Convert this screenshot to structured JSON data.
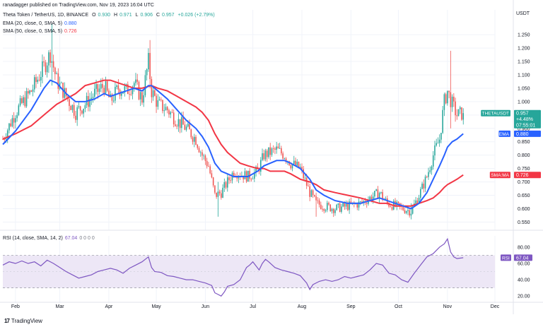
{
  "header": {
    "published": "ranadagger published on TradingView.com, Nov 19, 2023 16:04 UTC",
    "symbol": "Theta Token / TetherUS, 1D, BINANCE",
    "ohlc": {
      "o_label": "O",
      "o": "0.930",
      "h_label": "H",
      "h": "0.971",
      "l_label": "L",
      "l": "0.906",
      "c_label": "C",
      "c": "0.957",
      "change": "+0.026 (+2.79%)"
    },
    "ema_label": "EMA (20, close, 0, SMA, 5)",
    "ema_value": "0.880",
    "sma_label": "SMA (50, close, 0, SMA, 5)",
    "sma_value": "0.726",
    "currency": "USDT"
  },
  "rsi_header": {
    "label": "RSI (14, close, SMA, 14, 2)",
    "value": "67.04",
    "extra": "0 0 0 0"
  },
  "footer": {
    "brand": "TradingView"
  },
  "colors": {
    "up": "#26a69a",
    "down": "#ef5350",
    "ema": "#2962ff",
    "sma": "#f23645",
    "rsi": "#7e57c2",
    "rsi_band": "#ede7f6",
    "price_tag": "#26a69a",
    "grid": "#f0f3fa",
    "axis_text": "#131722"
  },
  "chart_data": [
    {
      "type": "candlestick",
      "title": "Theta Token / TetherUS, 1D, BINANCE",
      "currency": "USDT",
      "x_labels": [
        "Feb",
        "Mar",
        "Apr",
        "May",
        "Jun",
        "Jul",
        "Aug",
        "Sep",
        "Oct",
        "Nov",
        "Dec"
      ],
      "x_label_day_index": [
        0,
        28,
        59,
        89,
        120,
        150,
        181,
        212,
        242,
        273,
        303
      ],
      "y_ticks": [
        1.25,
        1.2,
        1.15,
        1.1,
        1.05,
        1.0,
        0.95,
        0.9,
        0.85,
        0.8,
        0.75,
        0.7,
        0.65,
        0.6,
        0.55
      ],
      "ylim": [
        0.53,
        1.29
      ],
      "close_points": [
        [
          -8,
          0.86
        ],
        [
          0,
          0.96
        ],
        [
          10,
          1.04
        ],
        [
          18,
          1.13
        ],
        [
          22,
          1.18
        ],
        [
          26,
          1.08
        ],
        [
          32,
          1.02
        ],
        [
          38,
          0.96
        ],
        [
          44,
          0.99
        ],
        [
          50,
          1.03
        ],
        [
          56,
          1.06
        ],
        [
          60,
          1.0
        ],
        [
          65,
          1.05
        ],
        [
          70,
          1.04
        ],
        [
          75,
          1.07
        ],
        [
          80,
          1.01
        ],
        [
          84,
          1.15
        ],
        [
          86,
          1.04
        ],
        [
          90,
          0.99
        ],
        [
          96,
          0.97
        ],
        [
          102,
          0.93
        ],
        [
          108,
          0.9
        ],
        [
          114,
          0.86
        ],
        [
          118,
          0.8
        ],
        [
          122,
          0.76
        ],
        [
          126,
          0.65
        ],
        [
          130,
          0.66
        ],
        [
          134,
          0.7
        ],
        [
          138,
          0.74
        ],
        [
          142,
          0.73
        ],
        [
          147,
          0.72
        ],
        [
          153,
          0.74
        ],
        [
          157,
          0.8
        ],
        [
          161,
          0.81
        ],
        [
          165,
          0.82
        ],
        [
          170,
          0.8
        ],
        [
          174,
          0.77
        ],
        [
          180,
          0.75
        ],
        [
          186,
          0.66
        ],
        [
          190,
          0.62
        ],
        [
          195,
          0.61
        ],
        [
          202,
          0.6
        ],
        [
          210,
          0.61
        ],
        [
          218,
          0.62
        ],
        [
          224,
          0.64
        ],
        [
          230,
          0.66
        ],
        [
          235,
          0.62
        ],
        [
          240,
          0.61
        ],
        [
          245,
          0.6
        ],
        [
          250,
          0.59
        ],
        [
          255,
          0.65
        ],
        [
          260,
          0.72
        ],
        [
          264,
          0.8
        ],
        [
          268,
          0.86
        ],
        [
          271,
          1.0
        ],
        [
          273,
          1.04
        ],
        [
          276,
          0.99
        ],
        [
          279,
          0.95
        ],
        [
          283,
          0.957
        ]
      ],
      "candle_count_start": -8,
      "candle_count_end": 283,
      "wick_range": 0.025,
      "notable_extremes": [
        [
          23,
          1.29,
          1.06
        ],
        [
          85,
          1.23,
          1.05
        ],
        [
          275,
          1.19,
          0.9
        ],
        [
          128,
          0.7,
          0.57
        ],
        [
          190,
          0.66,
          0.57
        ],
        [
          250,
          0.62,
          0.56
        ]
      ],
      "overlays": [
        {
          "name": "EMA (20, close, 0, SMA, 5)",
          "last": 0.88,
          "points": [
            [
              -8,
              0.84
            ],
            [
              0,
              0.89
            ],
            [
              10,
              0.97
            ],
            [
              18,
              1.05
            ],
            [
              22,
              1.08
            ],
            [
              26,
              1.07
            ],
            [
              32,
              1.03
            ],
            [
              38,
              1.0
            ],
            [
              44,
              1.0
            ],
            [
              50,
              1.01
            ],
            [
              56,
              1.03
            ],
            [
              60,
              1.02
            ],
            [
              65,
              1.03
            ],
            [
              70,
              1.04
            ],
            [
              75,
              1.05
            ],
            [
              80,
              1.04
            ],
            [
              84,
              1.06
            ],
            [
              86,
              1.06
            ],
            [
              90,
              1.04
            ],
            [
              96,
              1.01
            ],
            [
              102,
              0.97
            ],
            [
              108,
              0.93
            ],
            [
              114,
              0.9
            ],
            [
              118,
              0.87
            ],
            [
              122,
              0.83
            ],
            [
              126,
              0.77
            ],
            [
              130,
              0.74
            ],
            [
              134,
              0.73
            ],
            [
              138,
              0.72
            ],
            [
              142,
              0.72
            ],
            [
              147,
              0.72
            ],
            [
              153,
              0.74
            ],
            [
              157,
              0.76
            ],
            [
              161,
              0.77
            ],
            [
              165,
              0.78
            ],
            [
              170,
              0.78
            ],
            [
              174,
              0.77
            ],
            [
              180,
              0.75
            ],
            [
              186,
              0.71
            ],
            [
              190,
              0.67
            ],
            [
              195,
              0.65
            ],
            [
              202,
              0.63
            ],
            [
              210,
              0.62
            ],
            [
              218,
              0.62
            ],
            [
              224,
              0.63
            ],
            [
              230,
              0.64
            ],
            [
              235,
              0.63
            ],
            [
              240,
              0.62
            ],
            [
              245,
              0.61
            ],
            [
              250,
              0.6
            ],
            [
              255,
              0.62
            ],
            [
              260,
              0.66
            ],
            [
              264,
              0.71
            ],
            [
              268,
              0.76
            ],
            [
              271,
              0.8
            ],
            [
              273,
              0.83
            ],
            [
              276,
              0.85
            ],
            [
              279,
              0.86
            ],
            [
              283,
              0.88
            ]
          ]
        },
        {
          "name": "SMA (50, close, 0, SMA, 5)",
          "last": 0.726,
          "points": [
            [
              -8,
              0.86
            ],
            [
              0,
              0.88
            ],
            [
              10,
              0.91
            ],
            [
              18,
              0.95
            ],
            [
              26,
              0.99
            ],
            [
              32,
              1.01
            ],
            [
              38,
              1.03
            ],
            [
              44,
              1.06
            ],
            [
              50,
              1.07
            ],
            [
              56,
              1.08
            ],
            [
              60,
              1.08
            ],
            [
              65,
              1.07
            ],
            [
              70,
              1.06
            ],
            [
              75,
              1.05
            ],
            [
              80,
              1.05
            ],
            [
              86,
              1.06
            ],
            [
              90,
              1.05
            ],
            [
              96,
              1.04
            ],
            [
              102,
              1.02
            ],
            [
              108,
              1.0
            ],
            [
              114,
              0.98
            ],
            [
              118,
              0.96
            ],
            [
              122,
              0.93
            ],
            [
              126,
              0.88
            ],
            [
              130,
              0.84
            ],
            [
              134,
              0.81
            ],
            [
              138,
              0.79
            ],
            [
              142,
              0.77
            ],
            [
              147,
              0.76
            ],
            [
              153,
              0.75
            ],
            [
              157,
              0.75
            ],
            [
              161,
              0.74
            ],
            [
              165,
              0.74
            ],
            [
              170,
              0.74
            ],
            [
              174,
              0.73
            ],
            [
              180,
              0.71
            ],
            [
              186,
              0.7
            ],
            [
              190,
              0.69
            ],
            [
              195,
              0.67
            ],
            [
              202,
              0.66
            ],
            [
              210,
              0.65
            ],
            [
              218,
              0.64
            ],
            [
              224,
              0.63
            ],
            [
              230,
              0.62
            ],
            [
              235,
              0.62
            ],
            [
              240,
              0.61
            ],
            [
              245,
              0.61
            ],
            [
              250,
              0.61
            ],
            [
              255,
              0.62
            ],
            [
              260,
              0.63
            ],
            [
              264,
              0.64
            ],
            [
              268,
              0.66
            ],
            [
              271,
              0.68
            ],
            [
              273,
              0.69
            ],
            [
              276,
              0.7
            ],
            [
              279,
              0.71
            ],
            [
              283,
              0.726
            ]
          ]
        }
      ],
      "price_tags": [
        {
          "label": "THETAUSDT",
          "value": "0.957",
          "change": "+4.48%",
          "time": "07:55:01"
        },
        {
          "label": "EMA",
          "value": "0.880"
        },
        {
          "label": "SMA:MA",
          "value": "0.726"
        }
      ]
    },
    {
      "type": "line",
      "title": "RSI (14, close, SMA, 14, 2)",
      "y_ticks": [
        80.0,
        60.0,
        40.0,
        20.0
      ],
      "ylim": [
        15,
        92
      ],
      "band": [
        30,
        70
      ],
      "last": 67.04,
      "points": [
        [
          -8,
          58
        ],
        [
          -4,
          62
        ],
        [
          0,
          60
        ],
        [
          4,
          63
        ],
        [
          8,
          60
        ],
        [
          12,
          62
        ],
        [
          16,
          57
        ],
        [
          20,
          64
        ],
        [
          24,
          60
        ],
        [
          28,
          55
        ],
        [
          32,
          50
        ],
        [
          36,
          46
        ],
        [
          40,
          42
        ],
        [
          44,
          44
        ],
        [
          48,
          46
        ],
        [
          52,
          50
        ],
        [
          56,
          52
        ],
        [
          60,
          54
        ],
        [
          64,
          52
        ],
        [
          68,
          48
        ],
        [
          72,
          54
        ],
        [
          76,
          58
        ],
        [
          80,
          62
        ],
        [
          84,
          68
        ],
        [
          86,
          55
        ],
        [
          88,
          50
        ],
        [
          92,
          49
        ],
        [
          96,
          45
        ],
        [
          100,
          44
        ],
        [
          104,
          42
        ],
        [
          108,
          40
        ],
        [
          112,
          40
        ],
        [
          116,
          38
        ],
        [
          120,
          36
        ],
        [
          124,
          33
        ],
        [
          126,
          24
        ],
        [
          128,
          22
        ],
        [
          130,
          20
        ],
        [
          132,
          25
        ],
        [
          134,
          32
        ],
        [
          138,
          34
        ],
        [
          142,
          40
        ],
        [
          146,
          55
        ],
        [
          148,
          58
        ],
        [
          150,
          62
        ],
        [
          154,
          52
        ],
        [
          156,
          60
        ],
        [
          158,
          65
        ],
        [
          160,
          62
        ],
        [
          164,
          55
        ],
        [
          168,
          52
        ],
        [
          172,
          50
        ],
        [
          176,
          48
        ],
        [
          180,
          45
        ],
        [
          184,
          36
        ],
        [
          186,
          28
        ],
        [
          188,
          34
        ],
        [
          192,
          38
        ],
        [
          196,
          40
        ],
        [
          200,
          38
        ],
        [
          204,
          40
        ],
        [
          208,
          44
        ],
        [
          212,
          42
        ],
        [
          216,
          44
        ],
        [
          220,
          46
        ],
        [
          224,
          52
        ],
        [
          228,
          60
        ],
        [
          232,
          58
        ],
        [
          236,
          48
        ],
        [
          240,
          46
        ],
        [
          244,
          40
        ],
        [
          248,
          37
        ],
        [
          252,
          48
        ],
        [
          256,
          58
        ],
        [
          260,
          68
        ],
        [
          264,
          72
        ],
        [
          268,
          80
        ],
        [
          271,
          84
        ],
        [
          273,
          90
        ],
        [
          275,
          74
        ],
        [
          277,
          68
        ],
        [
          279,
          66
        ],
        [
          283,
          67
        ]
      ]
    }
  ]
}
